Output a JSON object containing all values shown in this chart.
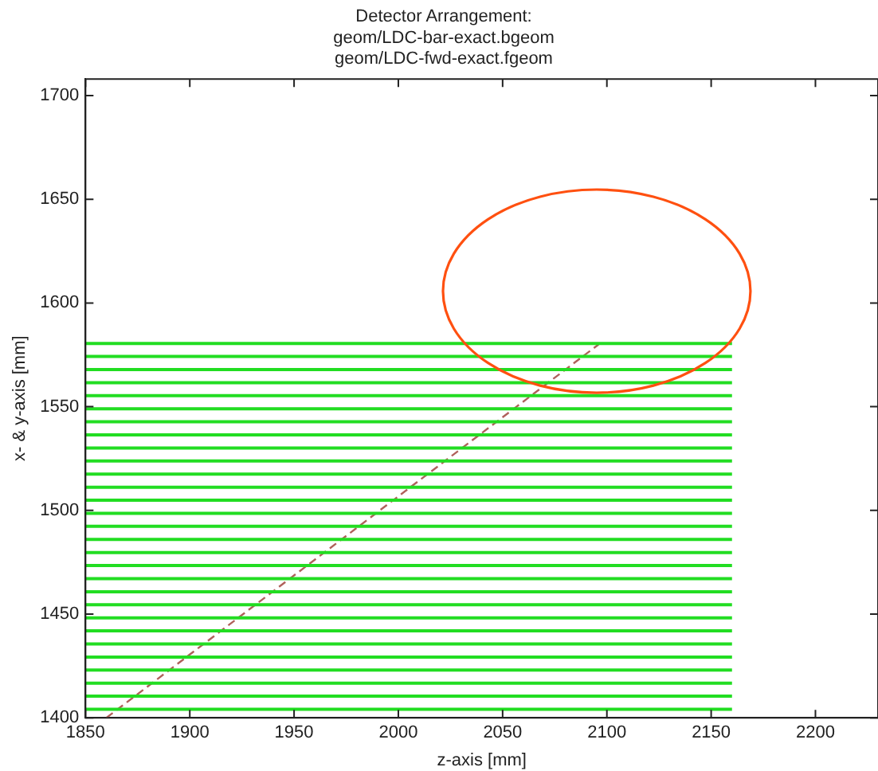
{
  "chart_data": {
    "type": "line",
    "title": "Detector Arrangement:\ngeom/LDC-bar-exact.bgeom\ngeom/LDC-fwd-exact.fgeom",
    "xlabel": "z-axis [mm]",
    "ylabel": "x- & y-axis [mm]",
    "xlim": [
      1850,
      2230
    ],
    "xticks": [
      1850,
      1900,
      1950,
      2000,
      2050,
      2100,
      2150,
      2200
    ],
    "ylim": [
      1400,
      1708
    ],
    "yticks": [
      1400,
      1450,
      1500,
      1550,
      1600,
      1650,
      1700
    ],
    "grid": false,
    "legend": false,
    "marker": "none",
    "series": [
      {
        "color": "#22dd22",
        "x": [
          1850,
          2160
        ],
        "values": [
          1404.1,
          1404.1
        ]
      },
      {
        "color": "#22dd22",
        "x": [
          1850,
          2160
        ],
        "values": [
          1410.4,
          1410.4
        ]
      },
      {
        "color": "#22dd22",
        "x": [
          1850,
          2160
        ],
        "values": [
          1416.7,
          1416.7
        ]
      },
      {
        "color": "#22dd22",
        "x": [
          1850,
          2160
        ],
        "values": [
          1423.0,
          1423.0
        ]
      },
      {
        "color": "#22dd22",
        "x": [
          1850,
          2160
        ],
        "values": [
          1429.3,
          1429.3
        ]
      },
      {
        "color": "#22dd22",
        "x": [
          1850,
          2160
        ],
        "values": [
          1435.6,
          1435.6
        ]
      },
      {
        "color": "#22dd22",
        "x": [
          1850,
          2160
        ],
        "values": [
          1441.9,
          1441.9
        ]
      },
      {
        "color": "#22dd22",
        "x": [
          1850,
          2160
        ],
        "values": [
          1448.2,
          1448.2
        ]
      },
      {
        "color": "#22dd22",
        "x": [
          1850,
          2160
        ],
        "values": [
          1454.5,
          1454.5
        ]
      },
      {
        "color": "#22dd22",
        "x": [
          1850,
          2160
        ],
        "values": [
          1460.8,
          1460.8
        ]
      },
      {
        "color": "#22dd22",
        "x": [
          1850,
          2160
        ],
        "values": [
          1467.1,
          1467.1
        ]
      },
      {
        "color": "#22dd22",
        "x": [
          1850,
          2160
        ],
        "values": [
          1473.4,
          1473.4
        ]
      },
      {
        "color": "#22dd22",
        "x": [
          1850,
          2160
        ],
        "values": [
          1479.7,
          1479.7
        ]
      },
      {
        "color": "#22dd22",
        "x": [
          1850,
          2160
        ],
        "values": [
          1486.0,
          1486.0
        ]
      },
      {
        "color": "#22dd22",
        "x": [
          1850,
          2160
        ],
        "values": [
          1492.3,
          1492.3
        ]
      },
      {
        "color": "#22dd22",
        "x": [
          1850,
          2160
        ],
        "values": [
          1498.6,
          1498.6
        ]
      },
      {
        "color": "#22dd22",
        "x": [
          1850,
          2160
        ],
        "values": [
          1504.9,
          1504.9
        ]
      },
      {
        "color": "#22dd22",
        "x": [
          1850,
          2160
        ],
        "values": [
          1511.2,
          1511.2
        ]
      },
      {
        "color": "#22dd22",
        "x": [
          1850,
          2160
        ],
        "values": [
          1517.5,
          1517.5
        ]
      },
      {
        "color": "#22dd22",
        "x": [
          1850,
          2160
        ],
        "values": [
          1523.8,
          1523.8
        ]
      },
      {
        "color": "#22dd22",
        "x": [
          1850,
          2160
        ],
        "values": [
          1530.1,
          1530.1
        ]
      },
      {
        "color": "#22dd22",
        "x": [
          1850,
          2160
        ],
        "values": [
          1536.4,
          1536.4
        ]
      },
      {
        "color": "#22dd22",
        "x": [
          1850,
          2160
        ],
        "values": [
          1542.7,
          1542.7
        ]
      },
      {
        "color": "#22dd22",
        "x": [
          1850,
          2160
        ],
        "values": [
          1549.0,
          1549.0
        ]
      },
      {
        "color": "#22dd22",
        "x": [
          1850,
          2160
        ],
        "values": [
          1555.3,
          1555.3
        ]
      },
      {
        "color": "#22dd22",
        "x": [
          1850,
          2160
        ],
        "values": [
          1561.6,
          1561.6
        ]
      },
      {
        "color": "#22dd22",
        "x": [
          1850,
          2160
        ],
        "values": [
          1567.9,
          1567.9
        ]
      },
      {
        "color": "#22dd22",
        "x": [
          1850,
          2160
        ],
        "values": [
          1574.2,
          1574.2
        ]
      },
      {
        "color": "#22dd22",
        "x": [
          1850,
          2160
        ],
        "values": [
          1580.5,
          1580.5
        ]
      },
      {
        "color": "#b0605a",
        "line_style": "dashed",
        "x": [
          1860,
          2096
        ],
        "values": [
          1400,
          1580
        ]
      }
    ]
  }
}
